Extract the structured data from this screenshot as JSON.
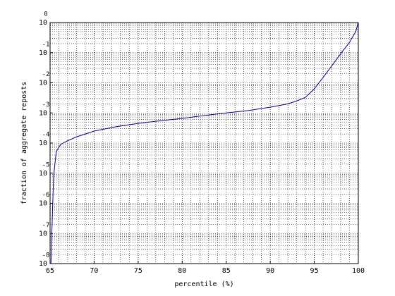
{
  "chart_data": {
    "type": "line",
    "x_label": "percentile (%)",
    "y_label": "fraction of aggregate reposts",
    "x": [
      65.1,
      65.2,
      65.4,
      65.7,
      66.2,
      67,
      68,
      70,
      72.5,
      75,
      77.5,
      80,
      82.5,
      85,
      87.5,
      90,
      92,
      93,
      94,
      95,
      96,
      97,
      98,
      99,
      99.7,
      100
    ],
    "series": [
      {
        "color": "#00008b",
        "values": [
          1e-08,
          1.1e-07,
          8e-06,
          5.2e-05,
          9e-05,
          0.00012,
          0.00016,
          0.00025,
          0.00035,
          0.00045,
          0.00055,
          0.00066,
          0.00082,
          0.001,
          0.0012,
          0.00155,
          0.002,
          0.0025,
          0.0033,
          0.0063,
          0.015,
          0.037,
          0.093,
          0.22,
          0.5,
          1
        ]
      }
    ],
    "xlim": [
      65,
      100
    ],
    "xticks": [
      65,
      70,
      75,
      80,
      85,
      90,
      95,
      100
    ],
    "ylim": [
      1e-08,
      1
    ],
    "ylog": true,
    "yticks": [
      {
        "value": 1e-08,
        "label": "10",
        "exponent": "-8"
      },
      {
        "value": 1e-07,
        "label": "10",
        "exponent": "-7"
      },
      {
        "value": 1e-06,
        "label": "10",
        "exponent": "-6"
      },
      {
        "value": 1e-05,
        "label": "10",
        "exponent": "-5"
      },
      {
        "value": 0.0001,
        "label": "10",
        "exponent": "-4"
      },
      {
        "value": 0.001,
        "label": "10",
        "exponent": "-3"
      },
      {
        "value": 0.01,
        "label": "10",
        "exponent": "-2"
      },
      {
        "value": 0.1,
        "label": "10",
        "exponent": "-1"
      },
      {
        "value": 1,
        "label": "10",
        "exponent": "0"
      }
    ],
    "grid": true
  }
}
